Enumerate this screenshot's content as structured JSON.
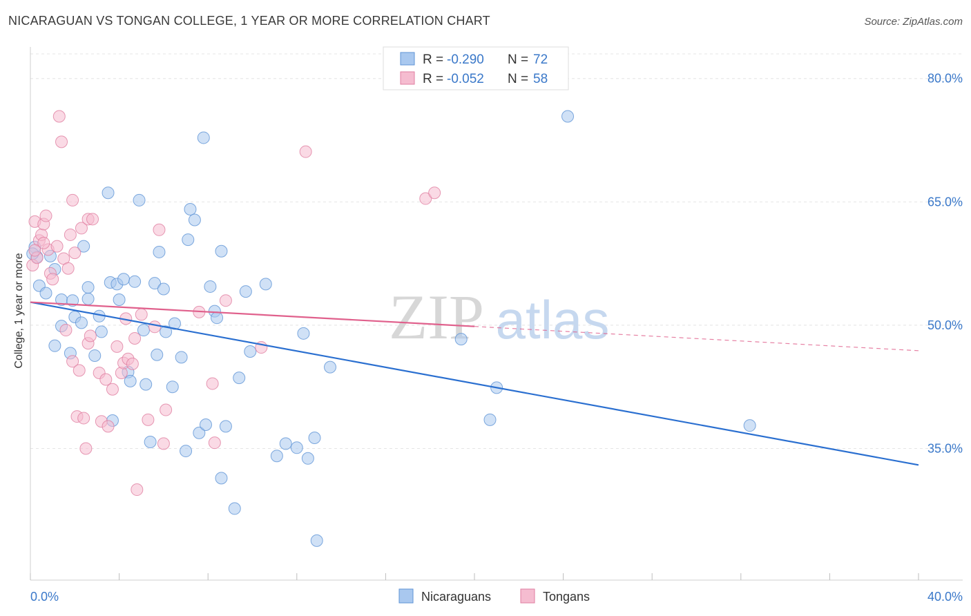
{
  "title": "NICARAGUAN VS TONGAN COLLEGE, 1 YEAR OR MORE CORRELATION CHART",
  "source": "Source: ZipAtlas.com",
  "legend": {
    "r_label": "R =",
    "n_label": "N =",
    "rows": [
      {
        "r": "-0.290",
        "n": "72"
      },
      {
        "r": "-0.052",
        "n": "58"
      }
    ]
  },
  "watermark": {
    "zip": "ZIP",
    "atlas": "atlas"
  },
  "colors": {
    "blue_fill": "#a9c8ef",
    "blue_stroke": "#5e93d6",
    "blue_line": "#2a6fd0",
    "pink_fill": "#f5bcd0",
    "pink_stroke": "#e07ea0",
    "pink_line": "#e0608c",
    "tick_text": "#3a78c9",
    "grid": "#e4e4e4"
  },
  "chart_data": {
    "type": "scatter",
    "title": "NICARAGUAN VS TONGAN COLLEGE, 1 YEAR OR MORE CORRELATION CHART",
    "xlabel": "",
    "ylabel": "College, 1 year or more",
    "xlim": [
      0,
      40
    ],
    "ylim": [
      19,
      83
    ],
    "x_tick_labels": [
      "0.0%",
      "40.0%"
    ],
    "y_ticks": [
      35,
      50,
      65,
      80
    ],
    "y_tick_labels": [
      "35.0%",
      "50.0%",
      "65.0%",
      "80.0%"
    ],
    "grid": true,
    "legend_position": "top-center",
    "series": [
      {
        "name": "Nicaraguans",
        "color": "#a9c8ef",
        "trend": {
          "x0": 0,
          "y0": 52.8,
          "x1": 40,
          "y1": 33.0,
          "solid_to": 40
        },
        "points": [
          [
            0.3,
            58.3
          ],
          [
            0.4,
            54.8
          ],
          [
            0.7,
            53.9
          ],
          [
            0.9,
            58.4
          ],
          [
            1.1,
            56.8
          ],
          [
            1.1,
            47.5
          ],
          [
            1.4,
            49.9
          ],
          [
            1.4,
            53.1
          ],
          [
            1.8,
            46.6
          ],
          [
            1.9,
            53.0
          ],
          [
            2.0,
            51.0
          ],
          [
            2.3,
            50.3
          ],
          [
            2.4,
            59.6
          ],
          [
            2.6,
            53.2
          ],
          [
            2.6,
            54.6
          ],
          [
            2.9,
            46.3
          ],
          [
            3.1,
            51.1
          ],
          [
            3.2,
            49.2
          ],
          [
            3.5,
            66.1
          ],
          [
            3.6,
            55.2
          ],
          [
            3.7,
            38.4
          ],
          [
            3.9,
            55.0
          ],
          [
            4.0,
            53.1
          ],
          [
            4.2,
            55.6
          ],
          [
            4.4,
            44.3
          ],
          [
            4.5,
            43.2
          ],
          [
            4.7,
            55.3
          ],
          [
            4.9,
            65.2
          ],
          [
            5.1,
            49.4
          ],
          [
            5.2,
            42.8
          ],
          [
            5.4,
            35.8
          ],
          [
            5.6,
            55.1
          ],
          [
            5.7,
            46.4
          ],
          [
            5.8,
            58.9
          ],
          [
            6.0,
            54.4
          ],
          [
            6.1,
            49.2
          ],
          [
            6.4,
            42.5
          ],
          [
            6.5,
            50.2
          ],
          [
            6.8,
            46.1
          ],
          [
            7.0,
            34.7
          ],
          [
            7.1,
            60.4
          ],
          [
            7.2,
            64.1
          ],
          [
            7.4,
            62.8
          ],
          [
            7.6,
            36.9
          ],
          [
            7.8,
            72.8
          ],
          [
            7.9,
            37.9
          ],
          [
            8.1,
            54.7
          ],
          [
            8.3,
            51.7
          ],
          [
            8.4,
            50.9
          ],
          [
            8.6,
            59.0
          ],
          [
            8.6,
            31.4
          ],
          [
            8.8,
            37.7
          ],
          [
            9.2,
            27.7
          ],
          [
            9.4,
            43.6
          ],
          [
            9.7,
            54.1
          ],
          [
            9.9,
            46.8
          ],
          [
            10.6,
            55.0
          ],
          [
            11.1,
            34.1
          ],
          [
            11.5,
            35.6
          ],
          [
            12.0,
            35.1
          ],
          [
            12.3,
            49.0
          ],
          [
            12.5,
            33.8
          ],
          [
            12.8,
            36.3
          ],
          [
            12.9,
            23.8
          ],
          [
            13.5,
            44.9
          ],
          [
            19.4,
            48.3
          ],
          [
            20.7,
            38.5
          ],
          [
            21.0,
            42.4
          ],
          [
            24.2,
            75.4
          ],
          [
            32.4,
            37.8
          ],
          [
            0.2,
            59.5
          ],
          [
            0.1,
            58.7
          ]
        ]
      },
      {
        "name": "Tongans",
        "color": "#f5bcd0",
        "trend": {
          "x0": 0,
          "y0": 52.8,
          "x1": 40,
          "y1": 46.9,
          "solid_to": 20
        },
        "points": [
          [
            0.1,
            57.3
          ],
          [
            0.2,
            62.6
          ],
          [
            0.3,
            58.2
          ],
          [
            0.4,
            60.3
          ],
          [
            0.5,
            61.0
          ],
          [
            0.6,
            62.3
          ],
          [
            0.7,
            63.3
          ],
          [
            0.8,
            59.2
          ],
          [
            0.9,
            56.3
          ],
          [
            1.0,
            55.6
          ],
          [
            1.2,
            59.6
          ],
          [
            1.3,
            75.4
          ],
          [
            1.4,
            72.3
          ],
          [
            1.5,
            58.1
          ],
          [
            1.6,
            49.4
          ],
          [
            1.7,
            56.9
          ],
          [
            1.8,
            61.0
          ],
          [
            1.9,
            45.6
          ],
          [
            1.9,
            65.2
          ],
          [
            2.0,
            58.8
          ],
          [
            2.1,
            38.9
          ],
          [
            2.2,
            44.5
          ],
          [
            2.3,
            61.8
          ],
          [
            2.4,
            38.7
          ],
          [
            2.5,
            35.0
          ],
          [
            2.6,
            47.8
          ],
          [
            2.6,
            62.9
          ],
          [
            2.7,
            48.7
          ],
          [
            2.8,
            62.9
          ],
          [
            3.1,
            44.2
          ],
          [
            3.2,
            38.3
          ],
          [
            3.4,
            43.4
          ],
          [
            3.5,
            37.7
          ],
          [
            3.7,
            42.2
          ],
          [
            3.9,
            47.4
          ],
          [
            4.1,
            44.2
          ],
          [
            4.2,
            45.4
          ],
          [
            4.3,
            50.8
          ],
          [
            4.4,
            45.9
          ],
          [
            4.6,
            45.3
          ],
          [
            4.7,
            48.4
          ],
          [
            4.8,
            30.0
          ],
          [
            5.0,
            51.3
          ],
          [
            5.3,
            38.5
          ],
          [
            5.6,
            49.8
          ],
          [
            5.8,
            61.6
          ],
          [
            6.0,
            35.6
          ],
          [
            6.1,
            39.7
          ],
          [
            7.6,
            51.6
          ],
          [
            8.2,
            42.9
          ],
          [
            8.3,
            35.7
          ],
          [
            8.8,
            53.0
          ],
          [
            10.4,
            47.3
          ],
          [
            12.4,
            71.1
          ],
          [
            17.8,
            65.4
          ],
          [
            18.2,
            66.1
          ],
          [
            0.2,
            59.1
          ],
          [
            0.6,
            60.0
          ]
        ]
      }
    ]
  }
}
